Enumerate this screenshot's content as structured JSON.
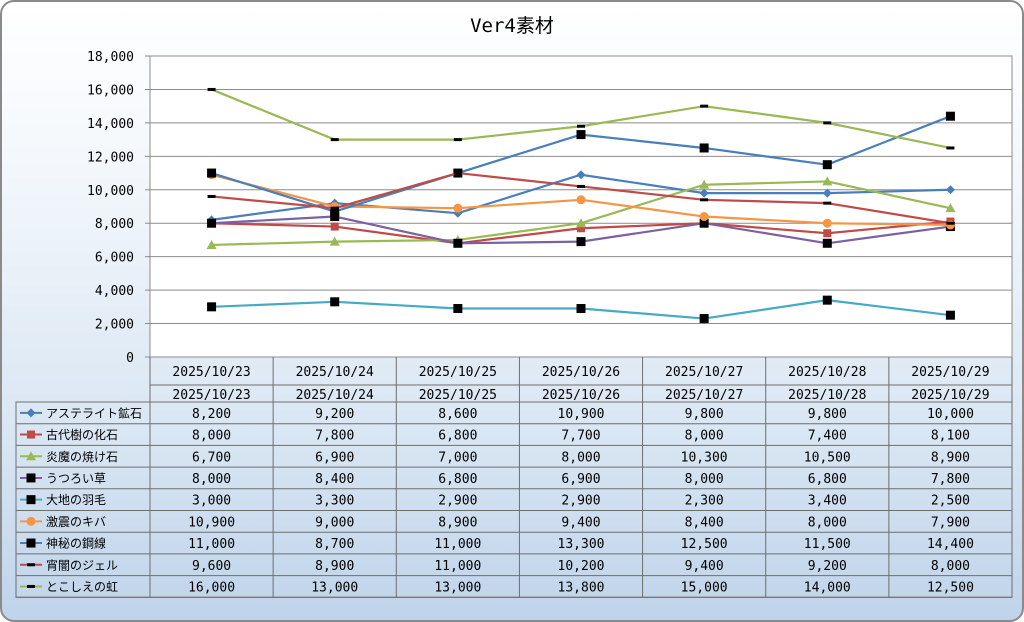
{
  "chart_data": {
    "type": "line",
    "title": "Ver4素材",
    "xlabel": "",
    "ylabel": "",
    "ylim": [
      0,
      18000
    ],
    "yticks": [
      0,
      2000,
      4000,
      6000,
      8000,
      10000,
      12000,
      14000,
      16000,
      18000
    ],
    "ytick_labels": [
      "0",
      "2,000",
      "4,000",
      "6,000",
      "8,000",
      "10,000",
      "12,000",
      "14,000",
      "16,000",
      "18,000"
    ],
    "grid": true,
    "legend": "data-table-below",
    "categories": [
      "2025/10/23",
      "2025/10/24",
      "2025/10/25",
      "2025/10/26",
      "2025/10/27",
      "2025/10/28",
      "2025/10/29"
    ],
    "series": [
      {
        "name": "アステライト鉱石",
        "color": "#4a7ebb",
        "marker": "diamond",
        "values": [
          8200,
          9200,
          8600,
          10900,
          9800,
          9800,
          10000
        ],
        "labels": [
          "8,200",
          "9,200",
          "8,600",
          "10,900",
          "9,800",
          "9,800",
          "10,000"
        ]
      },
      {
        "name": "古代樹の化石",
        "color": "#be4b48",
        "marker": "square",
        "values": [
          8000,
          7800,
          6800,
          7700,
          8000,
          7400,
          8100
        ],
        "labels": [
          "8,000",
          "7,800",
          "6,800",
          "7,700",
          "8,000",
          "7,400",
          "8,100"
        ]
      },
      {
        "name": "炎魔の焼け石",
        "color": "#98b954",
        "marker": "triangle",
        "values": [
          6700,
          6900,
          7000,
          8000,
          10300,
          10500,
          8900
        ],
        "labels": [
          "6,700",
          "6,900",
          "7,000",
          "8,000",
          "10,300",
          "10,500",
          "8,900"
        ]
      },
      {
        "name": "うつろい草",
        "color": "#7d60a0",
        "marker": "blacksquare",
        "values": [
          8000,
          8400,
          6800,
          6900,
          8000,
          6800,
          7800
        ],
        "labels": [
          "8,000",
          "8,400",
          "6,800",
          "6,900",
          "8,000",
          "6,800",
          "7,800"
        ]
      },
      {
        "name": "大地の羽毛",
        "color": "#46aac4",
        "marker": "blacksquare",
        "values": [
          3000,
          3300,
          2900,
          2900,
          2300,
          3400,
          2500
        ],
        "labels": [
          "3,000",
          "3,300",
          "2,900",
          "2,900",
          "2,300",
          "3,400",
          "2,500"
        ]
      },
      {
        "name": "激震のキバ",
        "color": "#f69545",
        "marker": "circle",
        "values": [
          10900,
          9000,
          8900,
          9400,
          8400,
          8000,
          7900
        ],
        "labels": [
          "10,900",
          "9,000",
          "8,900",
          "9,400",
          "8,400",
          "8,000",
          "7,900"
        ]
      },
      {
        "name": "神秘の鋼線",
        "color": "#4a7ebb",
        "marker": "blacksquare",
        "values": [
          11000,
          8700,
          11000,
          13300,
          12500,
          11500,
          14400
        ],
        "labels": [
          "11,000",
          "8,700",
          "11,000",
          "13,300",
          "12,500",
          "11,500",
          "14,400"
        ]
      },
      {
        "name": "宵闇のジェル",
        "color": "#be4b48",
        "marker": "dash",
        "values": [
          9600,
          8900,
          11000,
          10200,
          9400,
          9200,
          8000
        ],
        "labels": [
          "9,600",
          "8,900",
          "11,000",
          "10,200",
          "9,400",
          "9,200",
          "8,000"
        ]
      },
      {
        "name": "とこしえの虹",
        "color": "#98b954",
        "marker": "dash",
        "values": [
          16000,
          13000,
          13000,
          13800,
          15000,
          14000,
          12500
        ],
        "labels": [
          "16,000",
          "13,000",
          "13,000",
          "13,800",
          "15,000",
          "14,000",
          "12,500"
        ]
      }
    ]
  }
}
